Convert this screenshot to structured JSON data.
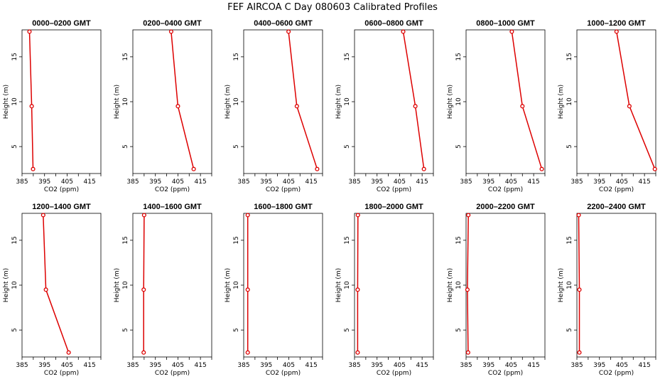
{
  "title": "FEF AIRCOA C  Day 080603  Calibrated Profiles",
  "chart_data": {
    "type": "line",
    "panels": [
      {
        "title": "0000–0200 GMT",
        "xlabel": "CO2 (ppm)",
        "ylabel": "Height (m)",
        "xlim": [
          385,
          420
        ],
        "ylim": [
          2,
          18
        ],
        "xticks": [
          385,
          395,
          405,
          415
        ],
        "yticks": [
          5,
          10,
          15
        ],
        "x": [
          388.3,
          389.3,
          389.9
        ],
        "y": [
          17.8,
          9.5,
          2.5
        ]
      },
      {
        "title": "0200–0400 GMT",
        "xlabel": "CO2 (ppm)",
        "ylabel": "Height (m)",
        "xlim": [
          385,
          420
        ],
        "ylim": [
          2,
          18
        ],
        "xticks": [
          385,
          395,
          405,
          415
        ],
        "yticks": [
          5,
          10,
          15
        ],
        "x": [
          402.0,
          405.0,
          412.0
        ],
        "y": [
          17.8,
          9.5,
          2.5
        ]
      },
      {
        "title": "0400–0600 GMT",
        "xlabel": "CO2 (ppm)",
        "ylabel": "Height (m)",
        "xlim": [
          385,
          420
        ],
        "ylim": [
          2,
          18
        ],
        "xticks": [
          385,
          395,
          405,
          415
        ],
        "yticks": [
          5,
          10,
          15
        ],
        "x": [
          404.9,
          408.6,
          417.6
        ],
        "y": [
          17.8,
          9.5,
          2.5
        ]
      },
      {
        "title": "0600–0800 GMT",
        "xlabel": "CO2 (ppm)",
        "ylabel": "Height (m)",
        "xlim": [
          385,
          420
        ],
        "ylim": [
          2,
          18
        ],
        "xticks": [
          385,
          395,
          405,
          415
        ],
        "yticks": [
          5,
          10,
          15
        ],
        "x": [
          406.6,
          412.0,
          415.8
        ],
        "y": [
          17.8,
          9.5,
          2.5
        ]
      },
      {
        "title": "0800–1000 GMT",
        "xlabel": "CO2 (ppm)",
        "ylabel": "Height (m)",
        "xlim": [
          385,
          420
        ],
        "ylim": [
          2,
          18
        ],
        "xticks": [
          385,
          395,
          405,
          415
        ],
        "yticks": [
          5,
          10,
          15
        ],
        "x": [
          405.3,
          410.0,
          418.6
        ],
        "y": [
          17.8,
          9.5,
          2.5
        ]
      },
      {
        "title": "1000–1200 GMT",
        "xlabel": "CO2 (ppm)",
        "ylabel": "Height (m)",
        "xlim": [
          385,
          420
        ],
        "ylim": [
          2,
          18
        ],
        "xticks": [
          385,
          395,
          405,
          415
        ],
        "yticks": [
          5,
          10,
          15
        ],
        "x": [
          402.6,
          408.3,
          419.6
        ],
        "y": [
          17.8,
          9.5,
          2.5
        ]
      },
      {
        "title": "1200–1400 GMT",
        "xlabel": "CO2 (ppm)",
        "ylabel": "Height (m)",
        "xlim": [
          385,
          420
        ],
        "ylim": [
          2,
          18
        ],
        "xticks": [
          385,
          395,
          405,
          415
        ],
        "yticks": [
          5,
          10,
          15
        ],
        "x": [
          394.4,
          395.6,
          405.7
        ],
        "y": [
          17.8,
          9.5,
          2.5
        ]
      },
      {
        "title": "1400–1600 GMT",
        "xlabel": "CO2 (ppm)",
        "ylabel": "Height (m)",
        "xlim": [
          385,
          420
        ],
        "ylim": [
          2,
          18
        ],
        "xticks": [
          385,
          395,
          405,
          415
        ],
        "yticks": [
          5,
          10,
          15
        ],
        "x": [
          390.0,
          389.8,
          389.8
        ],
        "y": [
          17.8,
          9.5,
          2.5
        ]
      },
      {
        "title": "1600–1800 GMT",
        "xlabel": "CO2 (ppm)",
        "ylabel": "Height (m)",
        "xlim": [
          385,
          420
        ],
        "ylim": [
          2,
          18
        ],
        "xticks": [
          385,
          395,
          405,
          415
        ],
        "yticks": [
          5,
          10,
          15
        ],
        "x": [
          386.8,
          386.8,
          386.8
        ],
        "y": [
          17.8,
          9.5,
          2.5
        ]
      },
      {
        "title": "1800–2000 GMT",
        "xlabel": "CO2 (ppm)",
        "ylabel": "Height (m)",
        "xlim": [
          385,
          420
        ],
        "ylim": [
          2,
          18
        ],
        "xticks": [
          385,
          395,
          405,
          415
        ],
        "yticks": [
          5,
          10,
          15
        ],
        "x": [
          386.5,
          386.4,
          386.4
        ],
        "y": [
          17.8,
          9.5,
          2.5
        ]
      },
      {
        "title": "2000–2200 GMT",
        "xlabel": "CO2 (ppm)",
        "ylabel": "Height (m)",
        "xlim": [
          385,
          420
        ],
        "ylim": [
          2,
          18
        ],
        "xticks": [
          385,
          395,
          405,
          415
        ],
        "yticks": [
          5,
          10,
          15
        ],
        "x": [
          386.0,
          385.6,
          385.9
        ],
        "y": [
          17.8,
          9.5,
          2.5
        ]
      },
      {
        "title": "2200–2400 GMT",
        "xlabel": "CO2 (ppm)",
        "ylabel": "Height (m)",
        "xlim": [
          385,
          420
        ],
        "ylim": [
          2,
          18
        ],
        "xticks": [
          385,
          395,
          405,
          415
        ],
        "yticks": [
          5,
          10,
          15
        ],
        "x": [
          385.8,
          386.1,
          386.1
        ],
        "y": [
          17.8,
          9.5,
          2.5
        ]
      }
    ],
    "line_color": "#dd0000",
    "marker": "open-circle",
    "grid": false
  }
}
